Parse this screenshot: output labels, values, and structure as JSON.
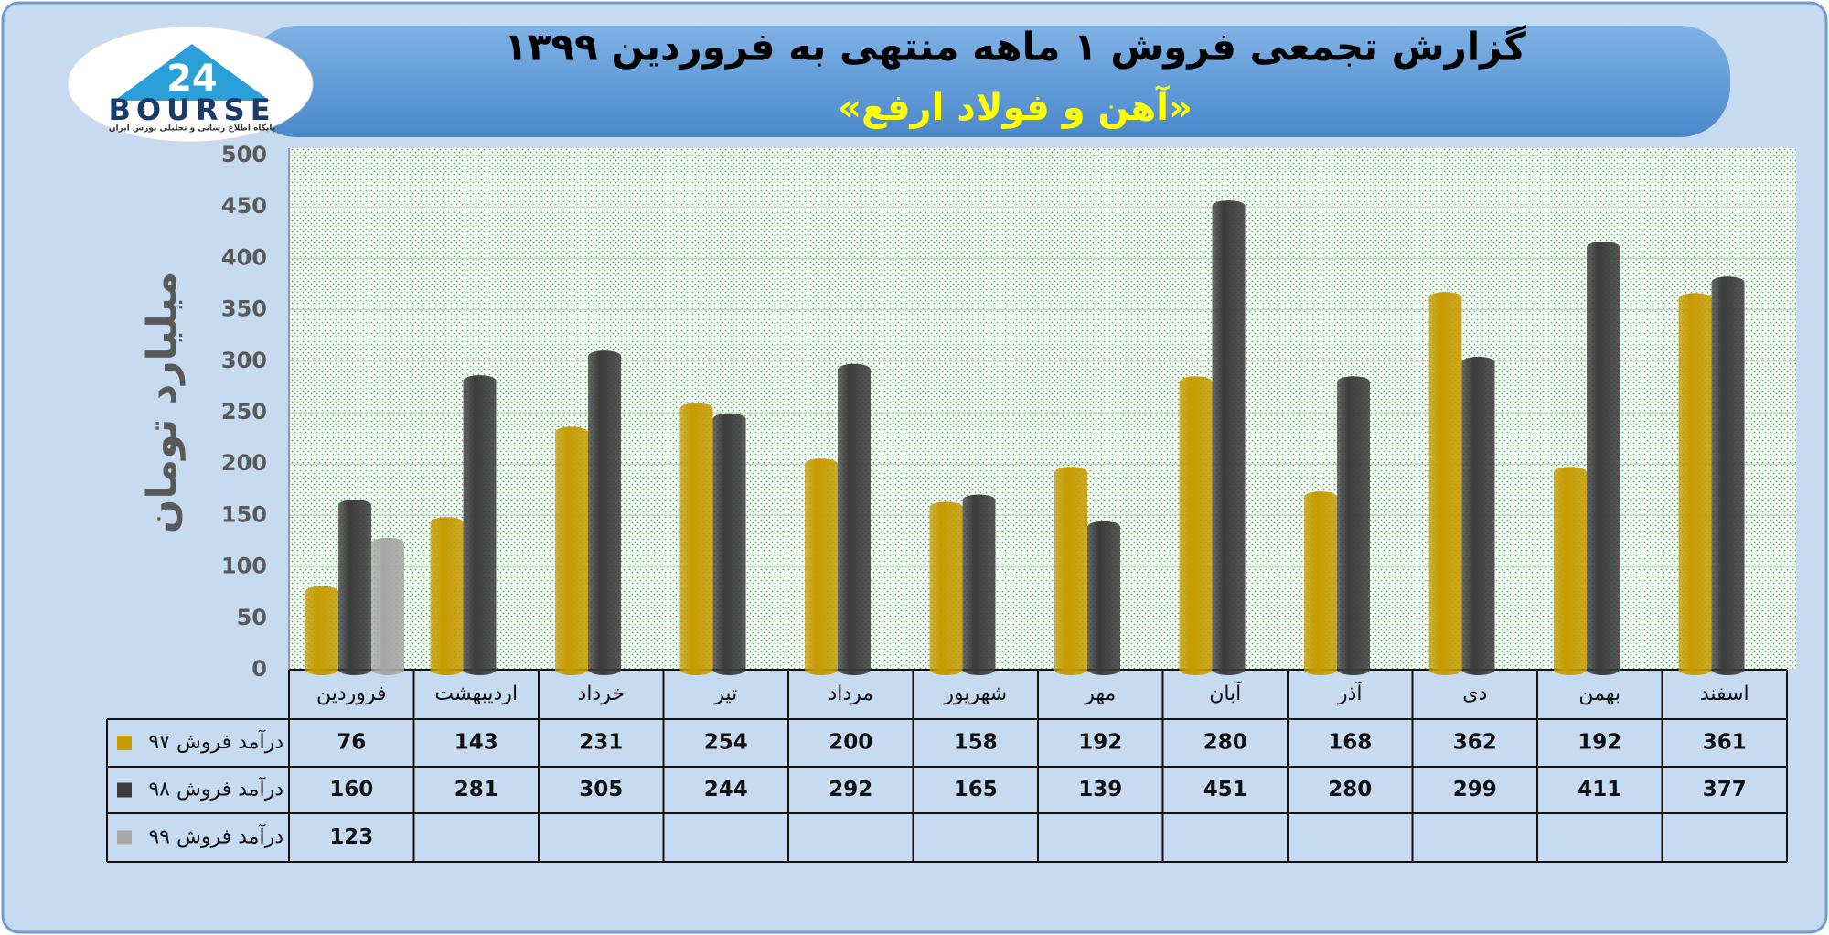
{
  "logo": {
    "number": "24",
    "name": "BOURSE",
    "tagline": "پایگاه اطلاع رسانی و تحلیلی بورس ایران"
  },
  "chart_data": {
    "type": "bar",
    "title": "گزارش تجمعی فروش ۱ ماهه منتهی به فروردین ۱۳۹۹",
    "subtitle": "«آهن و فولاد ارفع»",
    "y_label": "میلیارد تومان",
    "categories": [
      "فروردین",
      "اردیبهشت",
      "خرداد",
      "تیر",
      "مرداد",
      "شهریور",
      "مهر",
      "آبان",
      "آذر",
      "دی",
      "بهمن",
      "اسفند"
    ],
    "series": [
      {
        "name": "درآمد فروش ۹۷",
        "color": "#c59b00",
        "values": [
          76,
          143,
          231,
          254,
          200,
          158,
          192,
          280,
          168,
          362,
          192,
          361
        ]
      },
      {
        "name": "درآمد فروش ۹۸",
        "color": "#3b3b3b",
        "values": [
          160,
          281,
          305,
          244,
          292,
          165,
          139,
          451,
          280,
          299,
          411,
          377
        ]
      },
      {
        "name": "درآمد فروش ۹۹",
        "color": "#a6a6a6",
        "values": [
          123,
          null,
          null,
          null,
          null,
          null,
          null,
          null,
          null,
          null,
          null,
          null
        ]
      }
    ],
    "ylim": [
      0,
      500
    ],
    "yticks": [
      0,
      50,
      100,
      150,
      200,
      250,
      300,
      350,
      400,
      450,
      500
    ],
    "grid": true
  }
}
